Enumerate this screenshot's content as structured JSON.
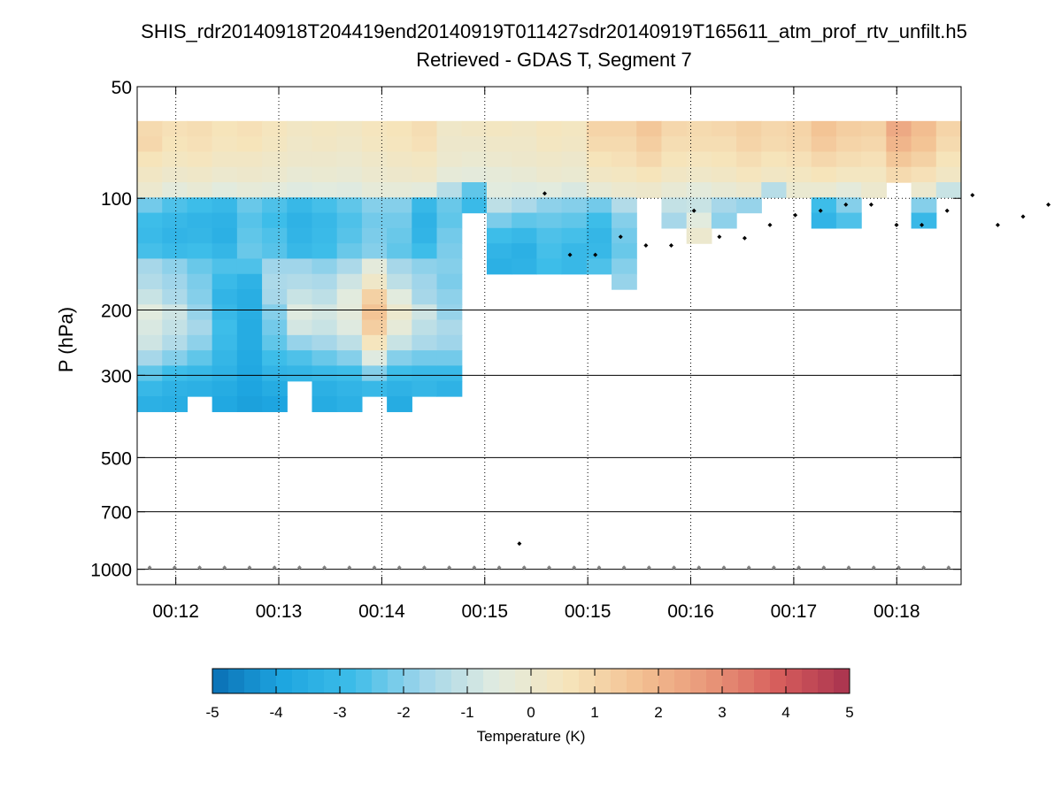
{
  "chart_data": {
    "type": "heatmap",
    "title": "SHIS_rdr20140918T204419end20140919T011427sdr20140919T165611_atm_prof_rtv_unfilt.h5",
    "subtitle": "Retrieved - GDAS T, Segment 7",
    "xlabel": "",
    "ylabel": "P (hPa)",
    "y_scale": "log",
    "y_reversed": true,
    "ylim": [
      50,
      1100
    ],
    "yticks": [
      50,
      100,
      200,
      300,
      500,
      700,
      1000
    ],
    "ytick_labels": [
      "50",
      "100",
      "200",
      "300",
      "500",
      "700",
      "1000"
    ],
    "xlim": [
      0,
      32
    ],
    "xticks": [
      1.5,
      5.5,
      9.5,
      13.5,
      17.5,
      21.5,
      25.5,
      29.5
    ],
    "xtick_labels": [
      "00:12",
      "00:13",
      "00:14",
      "00:15",
      "00:15",
      "00:16",
      "00:17",
      "00:18"
    ],
    "grid": "dotted vertical at x ticks; solid horizontal at 200, 300, 500, 700, 1000 hPa",
    "colorbar": {
      "label": "Temperature (K)",
      "min": -5,
      "max": 5,
      "ticks": [
        -5,
        -4,
        -3,
        -2,
        -1,
        0,
        1,
        2,
        3,
        4,
        5
      ],
      "tick_labels": [
        "-5",
        "-4",
        "-3",
        "-2",
        "-1",
        "0",
        "1",
        "2",
        "3",
        "4",
        "5"
      ],
      "colormap": [
        "#0a6fb4",
        "#1ea6e0",
        "#3ebde9",
        "#a3d6ea",
        "#e1ebe0",
        "#f6e5bc",
        "#f3c293",
        "#e99779",
        "#d65d5c",
        "#a8324f"
      ]
    },
    "cell_height_log10": 0.0414,
    "pressure_levels": [
      64.9,
      71.4,
      78.5,
      86.3,
      94.9,
      104.3,
      114.7,
      126.1,
      138.7,
      152.5,
      167.7,
      184.4,
      202.7,
      222.9,
      245.1,
      269.5,
      296.3,
      325.8,
      358.3
    ],
    "columns": [
      {
        "x": 0,
        "values": [
          0.9,
          1.0,
          0.6,
          0.3,
          0.0,
          -2.2,
          -2.8,
          -2.9,
          -2.7,
          -1.6,
          -1.4,
          -1.0,
          -0.5,
          -0.7,
          -0.9,
          -1.6,
          -2.4,
          -3.0,
          -3.4
        ]
      },
      {
        "x": 1,
        "values": [
          0.7,
          0.6,
          0.4,
          0.1,
          -0.4,
          -2.6,
          -3.0,
          -3.2,
          -2.9,
          -1.9,
          -1.7,
          -1.5,
          -0.9,
          -1.1,
          -1.4,
          -2.0,
          -2.8,
          -3.3,
          -3.5
        ]
      },
      {
        "x": 2,
        "values": [
          0.8,
          0.7,
          0.5,
          0.2,
          -0.2,
          -2.8,
          -3.2,
          -3.1,
          -2.8,
          -2.3,
          -2.1,
          -2.0,
          -1.8,
          -1.6,
          -1.9,
          -2.4,
          -3.0,
          -3.4,
          null
        ]
      },
      {
        "x": 3,
        "values": [
          0.6,
          0.5,
          0.3,
          0.0,
          -0.5,
          -3.0,
          -3.3,
          -3.4,
          -3.1,
          -2.6,
          -2.9,
          -3.2,
          -3.0,
          -2.8,
          -2.9,
          -3.1,
          -3.3,
          -3.6,
          -3.8
        ]
      },
      {
        "x": 4,
        "values": [
          0.7,
          0.6,
          0.3,
          0.1,
          -0.3,
          -2.3,
          -2.5,
          -2.4,
          -2.3,
          -2.6,
          -3.3,
          -3.5,
          -3.5,
          -3.6,
          -3.6,
          -3.7,
          -3.8,
          -3.9,
          -4.0
        ]
      },
      {
        "x": 5,
        "values": [
          0.5,
          0.4,
          0.2,
          0.0,
          -0.4,
          -2.6,
          -2.8,
          -2.6,
          -2.5,
          -1.7,
          -1.5,
          -1.6,
          -2.0,
          -2.2,
          -2.4,
          -2.8,
          -3.2,
          -3.6,
          -3.9
        ]
      },
      {
        "x": 6,
        "values": [
          0.3,
          0.2,
          0.1,
          -0.2,
          -0.6,
          -3.0,
          -3.3,
          -3.2,
          -3.0,
          -1.7,
          -1.4,
          -1.0,
          -0.6,
          -0.8,
          -1.8,
          -2.6,
          -3.1,
          null,
          null
        ]
      },
      {
        "x": 7,
        "values": [
          0.4,
          0.3,
          0.1,
          -0.1,
          -0.5,
          -2.7,
          -3.0,
          -2.9,
          -2.8,
          -1.9,
          -1.5,
          -1.2,
          -0.8,
          -1.0,
          -1.6,
          -2.3,
          -2.9,
          -3.4,
          -3.6
        ]
      },
      {
        "x": 8,
        "values": [
          0.3,
          0.2,
          0.0,
          -0.2,
          -0.6,
          -2.4,
          -2.6,
          -2.5,
          -2.3,
          -1.5,
          -0.9,
          -0.5,
          -0.4,
          -0.6,
          -1.2,
          -2.0,
          -2.8,
          -3.2,
          -3.4
        ]
      },
      {
        "x": 9,
        "values": [
          0.5,
          0.4,
          0.2,
          0.0,
          -0.3,
          -2.0,
          -2.2,
          -2.1,
          -2.0,
          -0.4,
          0.2,
          1.2,
          1.6,
          1.3,
          0.5,
          -0.6,
          -2.0,
          -3.0,
          null
        ]
      },
      {
        "x": 10,
        "values": [
          0.6,
          0.5,
          0.3,
          0.1,
          -0.3,
          -2.0,
          -2.2,
          -2.3,
          -2.4,
          -1.6,
          -1.2,
          -0.5,
          0.0,
          -0.3,
          -1.0,
          -2.0,
          -2.8,
          -3.3,
          -3.6
        ]
      },
      {
        "x": 11,
        "values": [
          0.8,
          0.7,
          0.4,
          0.2,
          -0.4,
          -3.0,
          -3.3,
          -3.2,
          -2.8,
          -1.9,
          -1.7,
          -1.6,
          -0.9,
          -1.2,
          -1.5,
          -2.2,
          -2.9,
          -3.1,
          null
        ]
      },
      {
        "x": 12,
        "values": [
          0.2,
          0.1,
          0.0,
          -0.3,
          -1.3,
          -2.3,
          -2.4,
          -2.2,
          -2.1,
          -2.0,
          -2.1,
          -1.9,
          -1.8,
          -1.5,
          -1.7,
          -2.2,
          -2.9,
          -3.3,
          null
        ]
      },
      {
        "x": 13,
        "values": [
          0.3,
          0.1,
          -0.1,
          -0.4,
          -2.4,
          -2.9,
          null,
          null,
          null,
          null,
          null,
          null,
          null,
          null,
          null,
          null,
          null,
          null,
          null
        ]
      },
      {
        "x": 14,
        "values": [
          0.4,
          0.2,
          0.0,
          -0.3,
          -0.5,
          -1.2,
          -2.1,
          -2.8,
          -3.2,
          -3.4,
          null,
          null,
          null,
          null,
          null,
          null,
          null,
          null,
          null
        ]
      },
      {
        "x": 15,
        "values": [
          0.3,
          0.2,
          0.1,
          -0.2,
          -0.6,
          -1.5,
          -2.4,
          -3.0,
          -3.4,
          -3.3,
          null,
          null,
          null,
          null,
          null,
          null,
          null,
          null,
          null
        ]
      },
      {
        "x": 16,
        "values": [
          0.5,
          0.4,
          0.2,
          0.0,
          -0.5,
          -1.9,
          -2.3,
          -2.6,
          -2.7,
          -2.8,
          null,
          null,
          null,
          null,
          null,
          null,
          null,
          null,
          null
        ]
      },
      {
        "x": 17,
        "values": [
          0.4,
          0.3,
          0.1,
          -0.1,
          -0.7,
          -2.0,
          -2.4,
          -2.7,
          -3.0,
          -3.0,
          null,
          null,
          null,
          null,
          null,
          null,
          null,
          null,
          null
        ]
      },
      {
        "x": 18,
        "values": [
          1.1,
          0.9,
          0.6,
          0.3,
          -0.2,
          -2.2,
          -2.8,
          -3.1,
          -3.0,
          -2.6,
          null,
          null,
          null,
          null,
          null,
          null,
          null,
          null,
          null
        ]
      },
      {
        "x": 19,
        "values": [
          1.1,
          0.9,
          0.7,
          0.4,
          0.0,
          -1.4,
          -2.0,
          -2.2,
          -2.3,
          -2.0,
          -1.8,
          null,
          null,
          null,
          null,
          null,
          null,
          null,
          null
        ]
      },
      {
        "x": 20,
        "values": [
          1.5,
          1.3,
          1.0,
          0.6,
          0.1,
          null,
          null,
          null,
          null,
          null,
          null,
          null,
          null,
          null,
          null,
          null,
          null,
          null,
          null
        ]
      },
      {
        "x": 21,
        "values": [
          1.0,
          0.8,
          0.6,
          0.3,
          -0.2,
          -1.1,
          -1.6,
          null,
          null,
          null,
          null,
          null,
          null,
          null,
          null,
          null,
          null,
          null,
          null
        ]
      },
      {
        "x": 22,
        "values": [
          0.9,
          0.8,
          0.5,
          0.2,
          -0.4,
          -1.0,
          -0.5,
          0.0,
          null,
          null,
          null,
          null,
          null,
          null,
          null,
          null,
          null,
          null,
          null
        ]
      },
      {
        "x": 23,
        "values": [
          1.0,
          0.8,
          0.6,
          0.3,
          -0.2,
          -1.6,
          -1.9,
          null,
          null,
          null,
          null,
          null,
          null,
          null,
          null,
          null,
          null,
          null,
          null
        ]
      },
      {
        "x": 24,
        "values": [
          1.2,
          1.1,
          0.8,
          0.5,
          0.0,
          -1.8,
          null,
          null,
          null,
          null,
          null,
          null,
          null,
          null,
          null,
          null,
          null,
          null,
          null
        ]
      },
      {
        "x": 25,
        "values": [
          1.0,
          0.9,
          0.6,
          0.3,
          -1.3,
          null,
          null,
          null,
          null,
          null,
          null,
          null,
          null,
          null,
          null,
          null,
          null,
          null,
          null
        ]
      },
      {
        "x": 26,
        "values": [
          1.1,
          1.0,
          0.7,
          0.4,
          -0.1,
          null,
          null,
          null,
          null,
          null,
          null,
          null,
          null,
          null,
          null,
          null,
          null,
          null,
          null
        ]
      },
      {
        "x": 27,
        "values": [
          1.6,
          1.4,
          1.0,
          0.6,
          -0.1,
          -2.8,
          -3.2,
          null,
          null,
          null,
          null,
          null,
          null,
          null,
          null,
          null,
          null,
          null,
          null
        ]
      },
      {
        "x": 28,
        "values": [
          1.3,
          1.1,
          0.8,
          0.4,
          -0.4,
          -2.0,
          -2.6,
          null,
          null,
          null,
          null,
          null,
          null,
          null,
          null,
          null,
          null,
          null,
          null
        ]
      },
      {
        "x": 29,
        "values": [
          1.2,
          1.0,
          0.7,
          0.4,
          0.0,
          null,
          null,
          null,
          null,
          null,
          null,
          null,
          null,
          null,
          null,
          null,
          null,
          null,
          null
        ]
      },
      {
        "x": 30,
        "values": [
          2.3,
          2.0,
          1.5,
          0.9,
          null,
          null,
          null,
          null,
          null,
          null,
          null,
          null,
          null,
          null,
          null,
          null,
          null,
          null,
          null
        ]
      },
      {
        "x": 31,
        "values": [
          1.8,
          1.6,
          1.2,
          0.7,
          0.0,
          -2.0,
          -3.0,
          null,
          null,
          null,
          null,
          null,
          null,
          null,
          null,
          null,
          null,
          null,
          null
        ]
      },
      {
        "x": 32,
        "values": [
          1.1,
          0.9,
          0.6,
          0.3,
          -1.0,
          null,
          null,
          null,
          null,
          null,
          null,
          null,
          null,
          null,
          null,
          null,
          null,
          null,
          null
        ]
      }
    ],
    "tropopause_markers": [
      {
        "x": 17.1,
        "p": 97
      },
      {
        "x": 18.1,
        "p": 142
      },
      {
        "x": 19.1,
        "p": 142
      },
      {
        "x": 20.1,
        "p": 127
      },
      {
        "x": 21.1,
        "p": 134
      },
      {
        "x": 22.1,
        "p": 134
      },
      {
        "x": 23.0,
        "p": 108
      },
      {
        "x": 24.0,
        "p": 127
      },
      {
        "x": 25.0,
        "p": 128
      },
      {
        "x": 26.0,
        "p": 118
      },
      {
        "x": 27.0,
        "p": 111
      },
      {
        "x": 28.0,
        "p": 108
      },
      {
        "x": 29.0,
        "p": 104
      },
      {
        "x": 30.0,
        "p": 104
      },
      {
        "x": 31.0,
        "p": 118
      },
      {
        "x": 32.0,
        "p": 118
      },
      {
        "x": 33.0,
        "p": 108
      },
      {
        "x": 34.0,
        "p": 98
      },
      {
        "x": 35.0,
        "p": 118
      },
      {
        "x": 36.0,
        "p": 112
      },
      {
        "x": 37.0,
        "p": 104
      },
      {
        "x": 16.1,
        "p": 853
      }
    ],
    "surface_markers": {
      "pressure": 990,
      "x": [
        0,
        1,
        2,
        3,
        4,
        5,
        6,
        7,
        8,
        9,
        10,
        11,
        12,
        13,
        14,
        15,
        16,
        17,
        18,
        19,
        20,
        21,
        22,
        23,
        24,
        25,
        26,
        27,
        28,
        29,
        30,
        31,
        32
      ]
    }
  }
}
